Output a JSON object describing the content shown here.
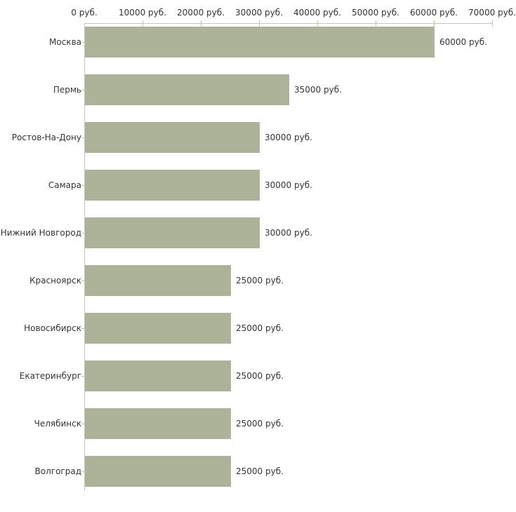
{
  "chart_data": {
    "type": "bar",
    "orientation": "horizontal",
    "title": "",
    "xlabel": "",
    "ylabel": "",
    "unit": "руб.",
    "xlim": [
      0,
      70000
    ],
    "grid": false,
    "legend": null,
    "categories": [
      "Москва",
      "Пермь",
      "Ростов-На-Дону",
      "Самара",
      "Нижний Новгород",
      "Красноярск",
      "Новосибирск",
      "Екатеринбург",
      "Челябинск",
      "Волгоград"
    ],
    "values": [
      60000,
      35000,
      30000,
      30000,
      30000,
      25000,
      25000,
      25000,
      25000,
      25000
    ],
    "value_labels": [
      "60000 руб.",
      "35000 руб.",
      "30000 руб.",
      "30000 руб.",
      "30000 руб.",
      "25000 руб.",
      "25000 руб.",
      "25000 руб.",
      "25000 руб.",
      "25000 руб."
    ],
    "x_ticks": [
      0,
      10000,
      20000,
      30000,
      40000,
      50000,
      60000,
      70000
    ],
    "x_tick_labels": [
      "0 руб.",
      "10000 руб.",
      "20000 руб.",
      "30000 руб.",
      "40000 руб.",
      "50000 руб.",
      "60000 руб.",
      "70000 руб."
    ],
    "colors": {
      "bar": "#adb399",
      "axis": "#c6c6c6",
      "tick": "#c3c59a",
      "text": "#333333",
      "background": "#ffffff"
    }
  }
}
